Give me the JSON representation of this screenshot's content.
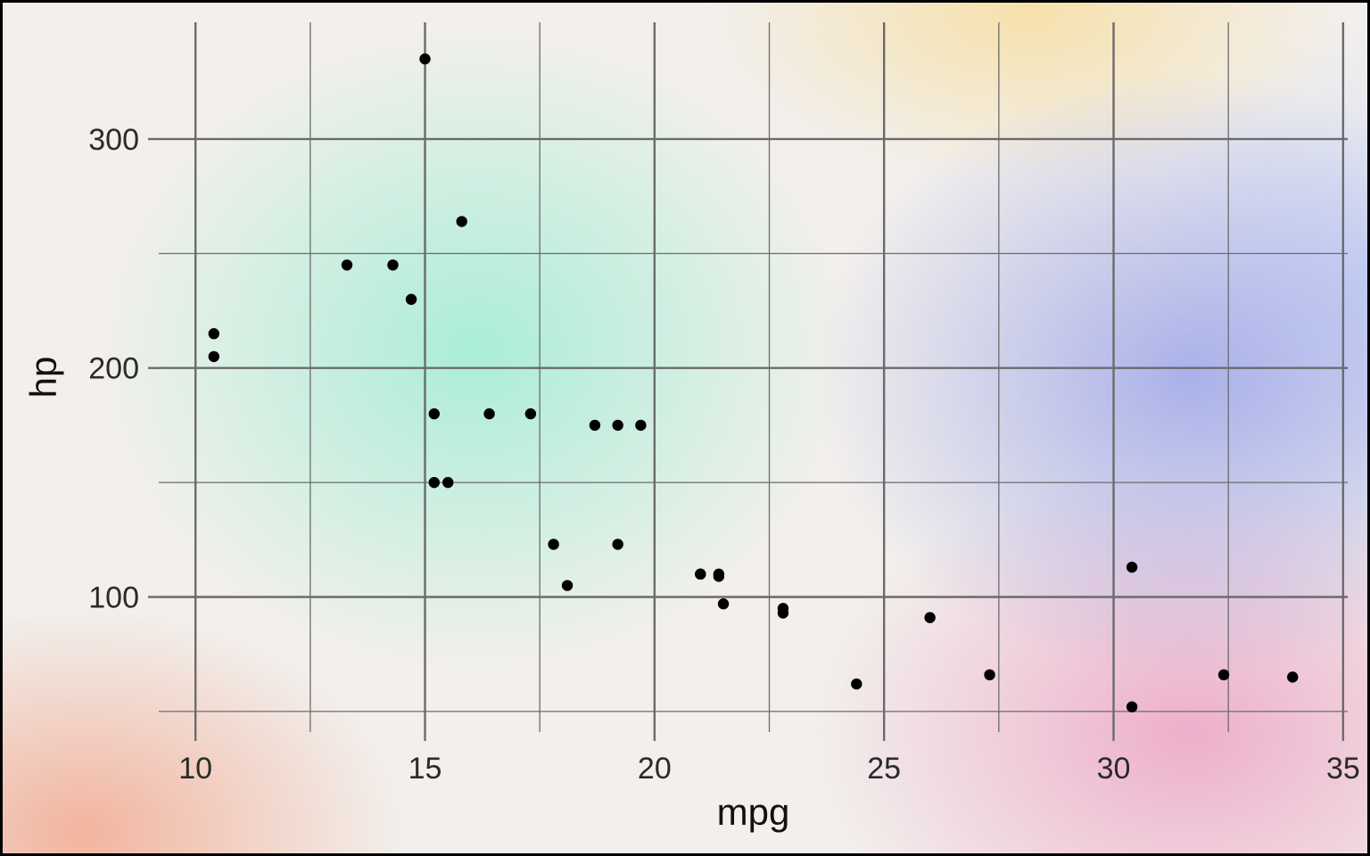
{
  "chart_data": {
    "type": "scatter",
    "xlabel": "mpg",
    "ylabel": "hp",
    "xlim": [
      9.2,
      35.1
    ],
    "ylim": [
      41,
      351
    ],
    "x_major_ticks": [
      10,
      15,
      20,
      25,
      30,
      35
    ],
    "x_minor_ticks": [
      12.5,
      17.5,
      22.5,
      27.5,
      32.5
    ],
    "y_major_ticks": [
      100,
      200,
      300
    ],
    "y_minor_ticks": [
      50,
      150,
      250
    ],
    "x_tick_labels": [
      "10",
      "15",
      "20",
      "25",
      "30",
      "35"
    ],
    "y_tick_labels": [
      "100",
      "200",
      "300"
    ],
    "grid": true,
    "point_color": "#000000",
    "grid_color": "#6b6b6b",
    "points": [
      {
        "x": 21.0,
        "y": 110
      },
      {
        "x": 21.0,
        "y": 110
      },
      {
        "x": 22.8,
        "y": 93
      },
      {
        "x": 21.4,
        "y": 110
      },
      {
        "x": 18.7,
        "y": 175
      },
      {
        "x": 18.1,
        "y": 105
      },
      {
        "x": 14.3,
        "y": 245
      },
      {
        "x": 24.4,
        "y": 62
      },
      {
        "x": 22.8,
        "y": 95
      },
      {
        "x": 19.2,
        "y": 123
      },
      {
        "x": 17.8,
        "y": 123
      },
      {
        "x": 16.4,
        "y": 180
      },
      {
        "x": 17.3,
        "y": 180
      },
      {
        "x": 15.2,
        "y": 180
      },
      {
        "x": 10.4,
        "y": 205
      },
      {
        "x": 10.4,
        "y": 215
      },
      {
        "x": 14.7,
        "y": 230
      },
      {
        "x": 32.4,
        "y": 66
      },
      {
        "x": 30.4,
        "y": 52
      },
      {
        "x": 33.9,
        "y": 65
      },
      {
        "x": 21.5,
        "y": 97
      },
      {
        "x": 15.5,
        "y": 150
      },
      {
        "x": 15.2,
        "y": 150
      },
      {
        "x": 13.3,
        "y": 245
      },
      {
        "x": 19.2,
        "y": 175
      },
      {
        "x": 27.3,
        "y": 66
      },
      {
        "x": 26.0,
        "y": 91
      },
      {
        "x": 30.4,
        "y": 113
      },
      {
        "x": 15.8,
        "y": 264
      },
      {
        "x": 19.7,
        "y": 175
      },
      {
        "x": 15.0,
        "y": 335
      },
      {
        "x": 21.4,
        "y": 109
      }
    ]
  }
}
